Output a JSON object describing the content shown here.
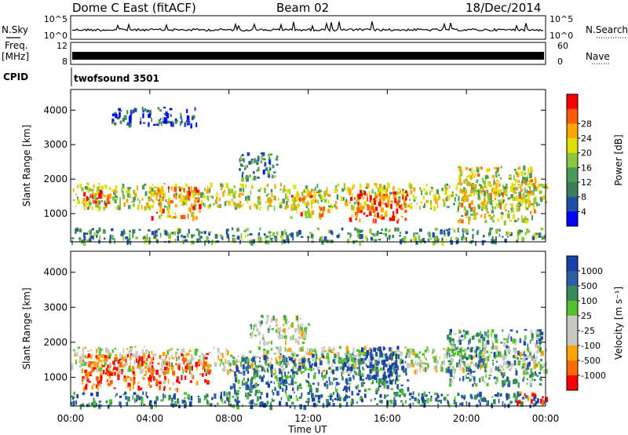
{
  "header": {
    "station": "Dome C East (fitACF)",
    "beam": "Beam 02",
    "date": "18/Dec/2014"
  },
  "strips": {
    "nsky_label": "N.Sky",
    "nsky_ticks": [
      "10^5",
      "10^0"
    ],
    "nsearch_label": "N.Search",
    "freq_label": "Freq.",
    "freq_unit": "[MHz]",
    "freq_ticks": [
      "12",
      "8"
    ],
    "nave_label": "Nave",
    "nave_ticks": [
      "60",
      "0"
    ],
    "cpid_label": "CPID",
    "cpid_value": "twofsound 3501"
  },
  "colors": {
    "power_scale": [
      "#0000ff",
      "#1f4fa8",
      "#3a7f5a",
      "#4a9a5a",
      "#8cc63f",
      "#e0e000",
      "#ffa500",
      "#ff5a00",
      "#ff0000"
    ],
    "velocity_scale": [
      "#ff0000",
      "#ff6a00",
      "#ffa500",
      "#c8c8c0",
      "#c8c8c0",
      "#55c030",
      "#3a8a5a",
      "#2a5fa8",
      "#1a3fa8"
    ]
  },
  "chart_data": [
    {
      "type": "heatmap",
      "title": "",
      "xlabel": "Time UT",
      "ylabel": "Slant Range [km]",
      "x_ticks": [
        "00:00",
        "04:00",
        "08:00",
        "12:00",
        "16:00",
        "20:00",
        "00:00"
      ],
      "y_ticks": [
        "1000",
        "2000",
        "3000",
        "4000"
      ],
      "ylim": [
        180,
        4600
      ],
      "xlim_hours": [
        0,
        24
      ],
      "colorbar": {
        "label": "Power [dB]",
        "ticks": [
          "4",
          "8",
          "12",
          "16",
          "20",
          "24",
          "28"
        ],
        "range": [
          0,
          30
        ]
      },
      "echo_regions": [
        {
          "t0": 0.0,
          "t1": 24.0,
          "r0": 200,
          "r1": 600,
          "level": 0.35
        },
        {
          "t0": 0.0,
          "t1": 24.0,
          "r0": 1200,
          "r1": 1900,
          "level": 0.55
        },
        {
          "t0": 0.6,
          "t1": 2.0,
          "r0": 1300,
          "r1": 1700,
          "level": 0.9
        },
        {
          "t0": 4.0,
          "t1": 6.5,
          "r0": 900,
          "r1": 1800,
          "level": 0.75
        },
        {
          "t0": 8.5,
          "t1": 10.5,
          "r0": 2000,
          "r1": 2800,
          "level": 0.3
        },
        {
          "t0": 11.0,
          "t1": 13.0,
          "r0": 900,
          "r1": 1700,
          "level": 0.7
        },
        {
          "t0": 14.0,
          "t1": 17.0,
          "r0": 800,
          "r1": 1700,
          "level": 0.85
        },
        {
          "t0": 19.5,
          "t1": 23.5,
          "r0": 800,
          "r1": 2400,
          "level": 0.6
        },
        {
          "t0": 2.0,
          "t1": 6.5,
          "r0": 3600,
          "r1": 4100,
          "level": 0.2
        }
      ]
    },
    {
      "type": "heatmap",
      "title": "",
      "xlabel": "Time UT",
      "ylabel": "Slant Range [km]",
      "x_ticks": [
        "00:00",
        "04:00",
        "08:00",
        "12:00",
        "16:00",
        "20:00",
        "00:00"
      ],
      "y_ticks": [
        "1000",
        "2000",
        "3000",
        "4000"
      ],
      "ylim": [
        180,
        4600
      ],
      "xlim_hours": [
        0,
        24
      ],
      "colorbar": {
        "label": "Velocity [m s⁻¹]",
        "ticks": [
          "1000",
          "500",
          "100",
          "25",
          "-25",
          "-100",
          "-500",
          "-1000"
        ],
        "range": [
          -1000,
          1000
        ]
      },
      "echo_regions": [
        {
          "t0": 0.0,
          "t1": 24.0,
          "r0": 200,
          "r1": 600,
          "level": 0.8
        },
        {
          "t0": 0.0,
          "t1": 24.0,
          "r0": 1200,
          "r1": 1900,
          "level": 0.45
        },
        {
          "t0": 0.5,
          "t1": 7.0,
          "r0": 700,
          "r1": 1700,
          "level": 0.15
        },
        {
          "t0": 8.0,
          "t1": 17.0,
          "r0": 600,
          "r1": 1700,
          "level": 0.8
        },
        {
          "t0": 14.5,
          "t1": 16.5,
          "r0": 900,
          "r1": 1900,
          "level": 0.95
        },
        {
          "t0": 19.0,
          "t1": 23.8,
          "r0": 800,
          "r1": 2400,
          "level": 0.7
        },
        {
          "t0": 22.5,
          "t1": 24.0,
          "r0": 300,
          "r1": 600,
          "level": 0.1
        },
        {
          "t0": 9.0,
          "t1": 12.0,
          "r0": 2000,
          "r1": 2800,
          "level": 0.5
        }
      ]
    }
  ]
}
